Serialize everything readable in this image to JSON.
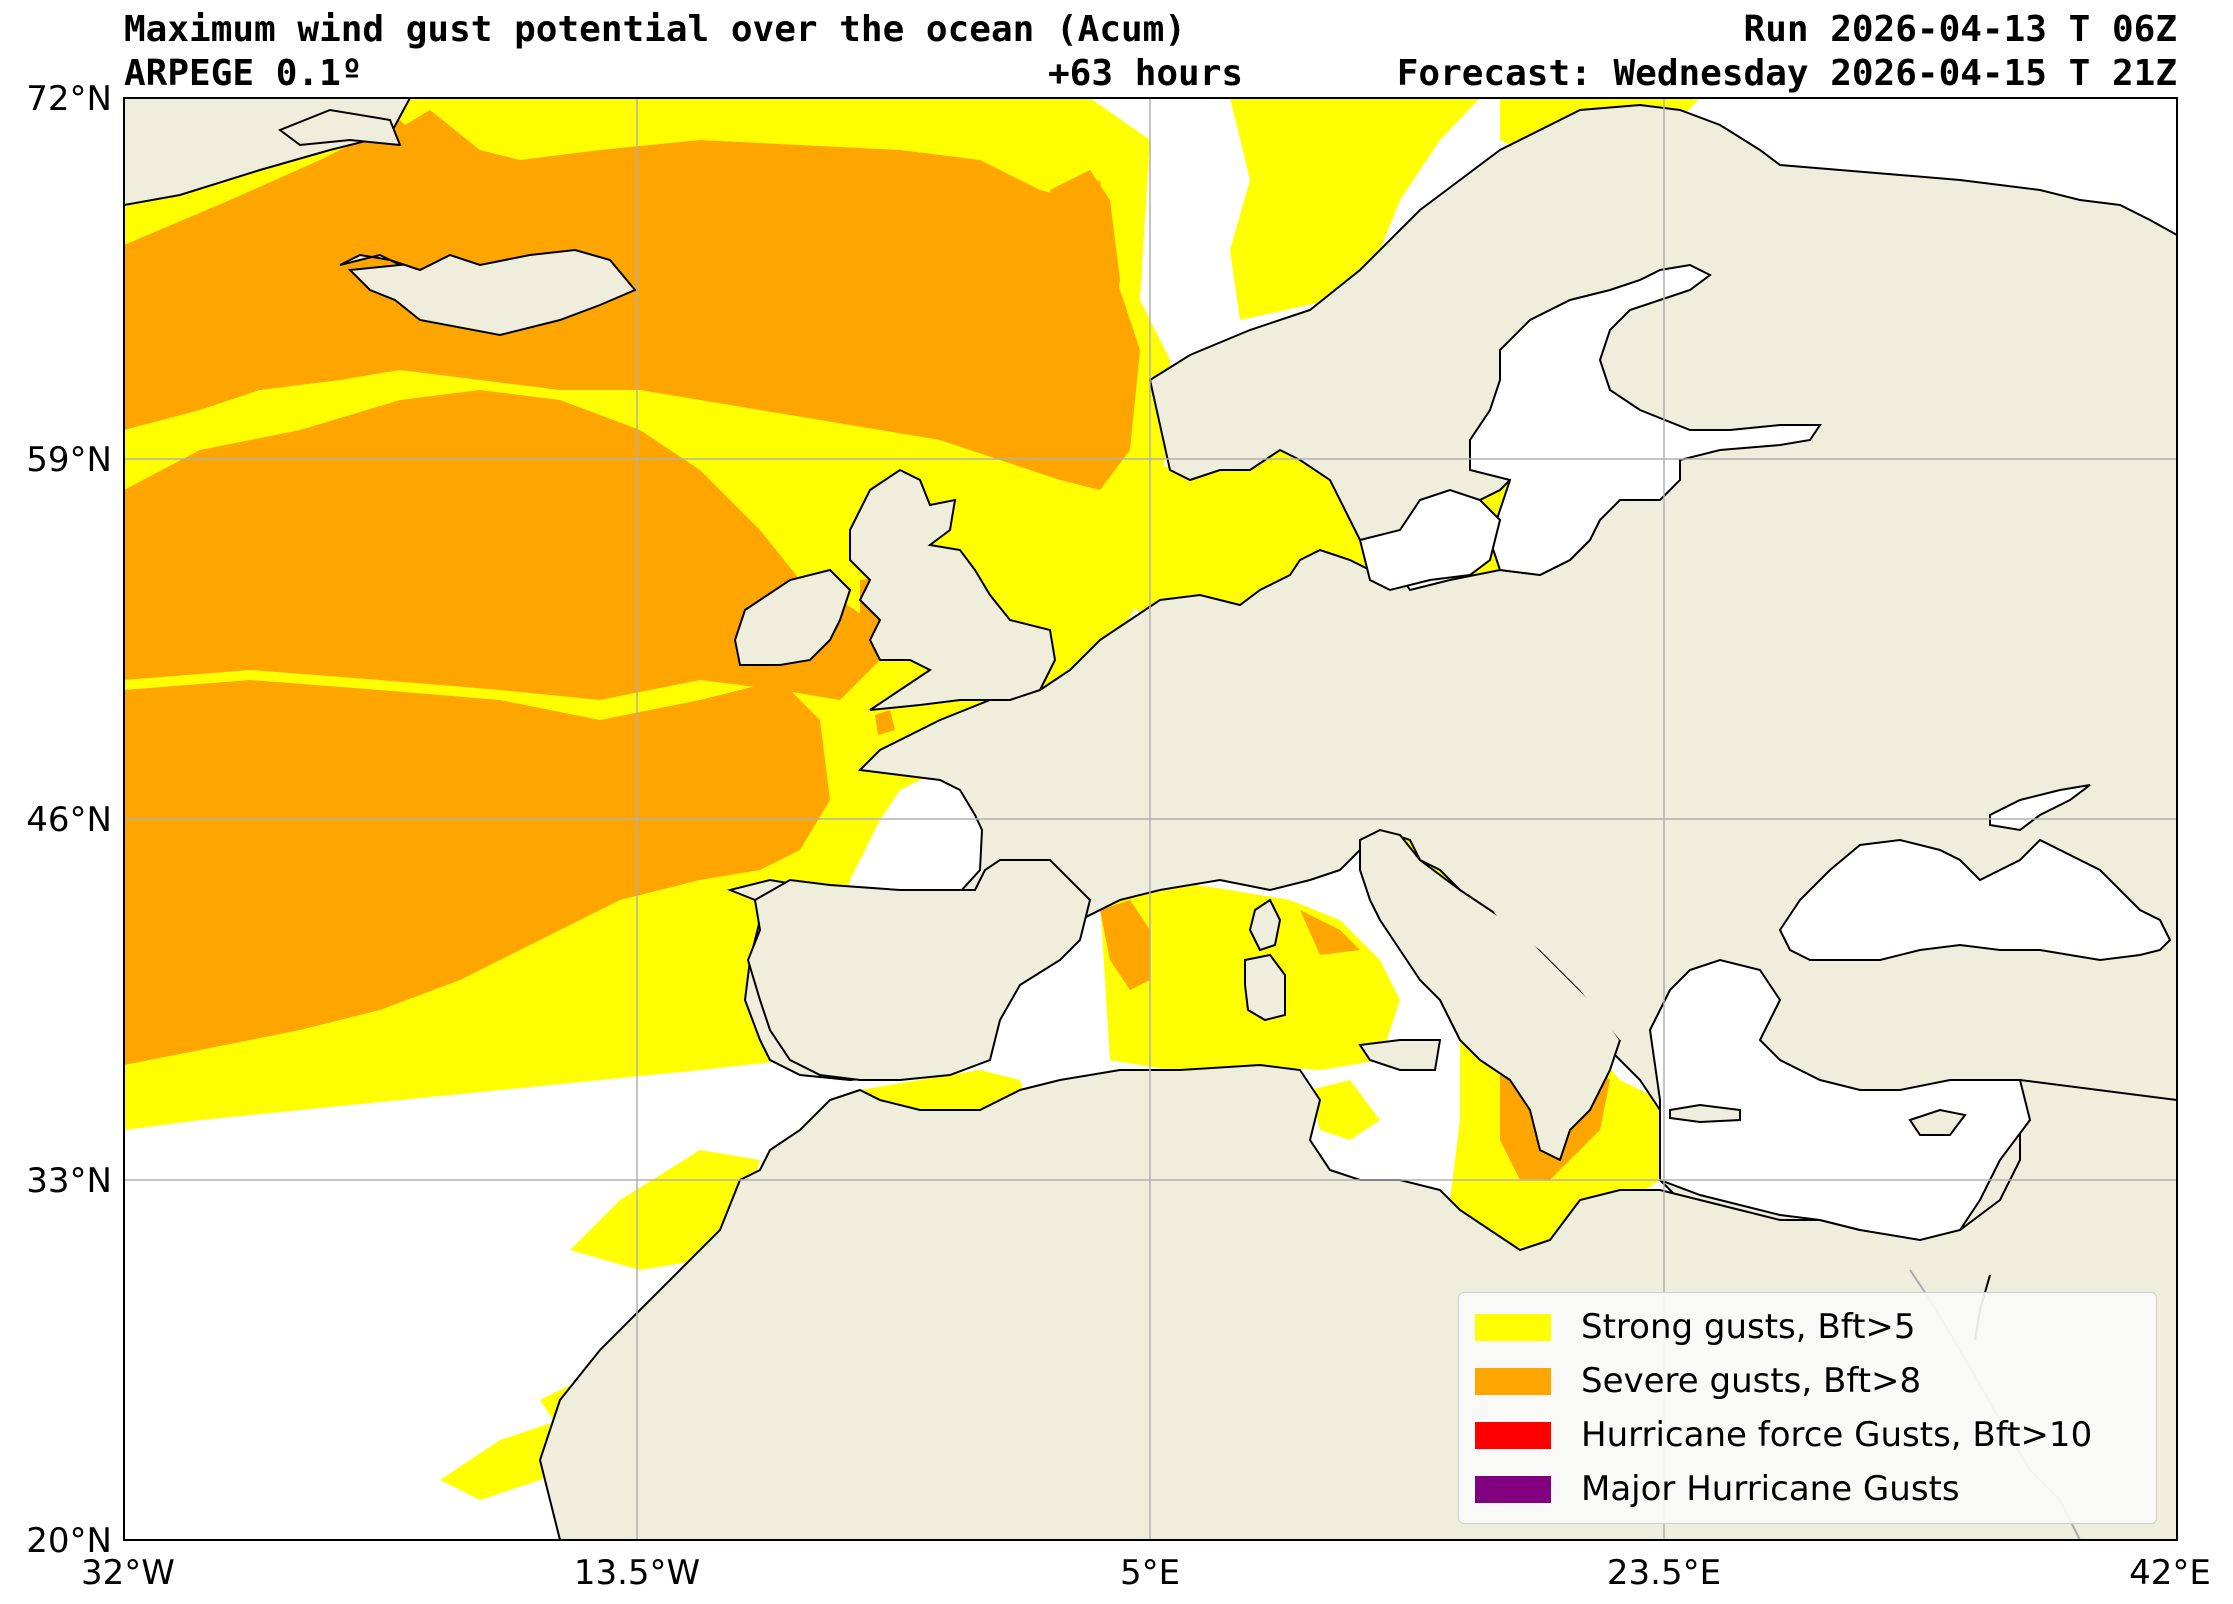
{
  "header": {
    "title": "Maximum wind gust potential over the ocean (Acum)",
    "model": "ARPEGE 0.1º",
    "lead_time": "+63 hours",
    "run": "Run 2026-04-13 T 06Z",
    "forecast": "Forecast: Wednesday 2026-04-15 T 21Z"
  },
  "axes": {
    "lat_ticks": [
      "72°N",
      "59°N",
      "46°N",
      "33°N",
      "20°N"
    ],
    "lon_ticks": [
      "32°W",
      "13.5°W",
      "5°E",
      "23.5°E",
      "42°E"
    ],
    "lat_range": [
      20,
      72
    ],
    "lon_range": [
      -32,
      42
    ],
    "grid": true
  },
  "legend": {
    "placement": "bottom-right",
    "items": [
      {
        "label": "Strong gusts, Bft>5",
        "color": "#ffff00"
      },
      {
        "label": "Severe gusts, Bft>8",
        "color": "#ffa500"
      },
      {
        "label": "Hurricane force Gusts, Bft>10",
        "color": "#ff0000"
      },
      {
        "label": "Major Hurricane Gusts",
        "color": "#800080"
      }
    ]
  },
  "colors": {
    "land": "#efeedd",
    "ocean": "#ffffff",
    "coast": "#000000",
    "grid": "#b0b0b0"
  }
}
